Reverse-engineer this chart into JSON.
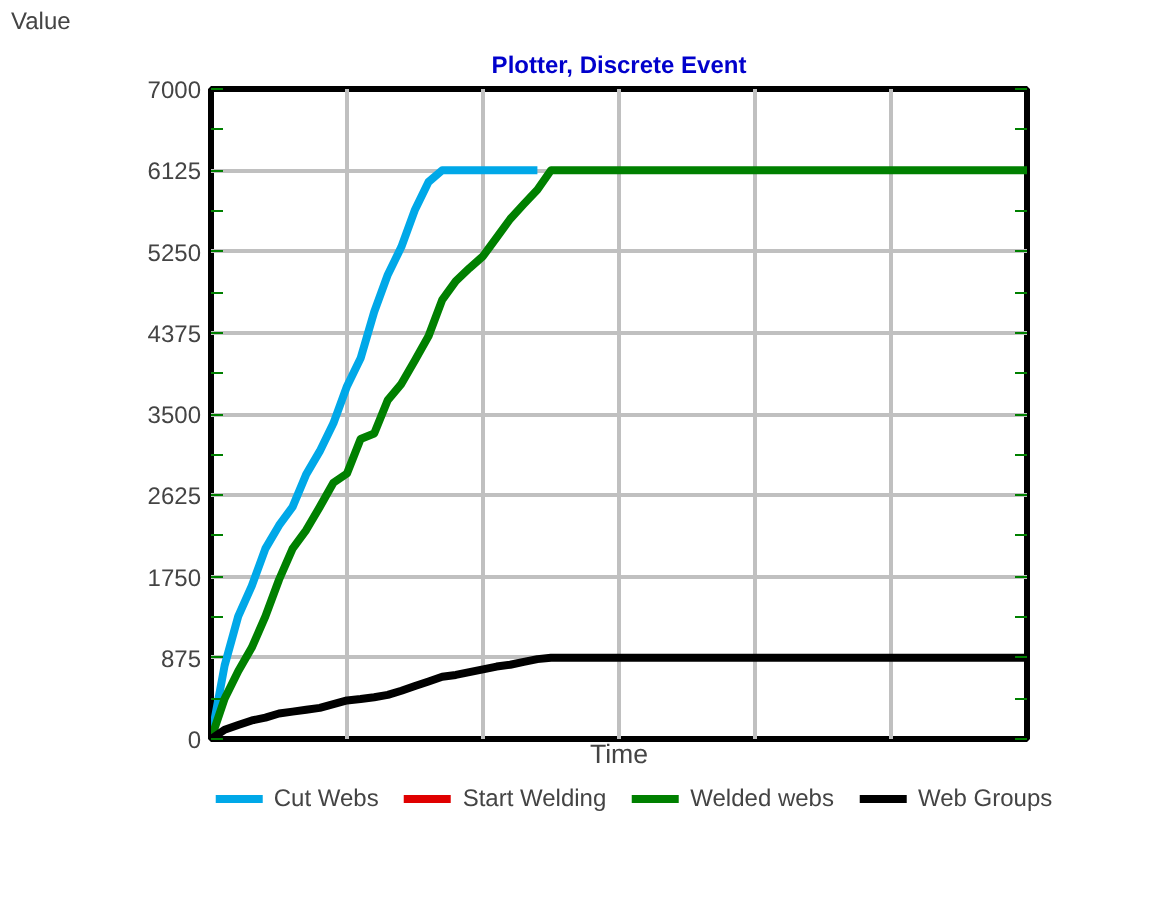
{
  "chart_data": {
    "type": "line",
    "title": "Plotter, Discrete Event",
    "xlabel": "Time",
    "ylabel": "Value",
    "categories": [
      null,
      null,
      null,
      null,
      null,
      null,
      null,
      null,
      null,
      null,
      null,
      null,
      null,
      null,
      null,
      null,
      null,
      null,
      null,
      null,
      null,
      null,
      null,
      null,
      null,
      null,
      null,
      null,
      null,
      null,
      null,
      null,
      null,
      null,
      null,
      null,
      null,
      null,
      null,
      null,
      null,
      null,
      null,
      null,
      null,
      null,
      null,
      null,
      null,
      null,
      null,
      null,
      null,
      null,
      null,
      null,
      null,
      null,
      null,
      null,
      null
    ],
    "series": [
      {
        "name": "Cut Webs",
        "color": "#00a8e8",
        "values": [
          0,
          790,
          1320,
          1650,
          2050,
          2300,
          2500,
          2850,
          3100,
          3400,
          3800,
          4100,
          4600,
          5000,
          5300,
          5700,
          6000,
          6125,
          6125,
          6125,
          6125,
          6125,
          6125,
          6125,
          6125,
          null,
          null,
          null,
          null,
          null,
          null,
          null,
          null,
          null,
          null,
          null,
          null,
          null,
          null,
          null,
          null,
          null,
          null,
          null,
          null,
          null,
          null,
          null,
          null,
          null,
          null,
          null,
          null,
          null,
          null,
          null,
          null,
          null,
          null,
          null,
          null
        ]
      },
      {
        "name": "Start Welding",
        "color": "#e00000",
        "values": [
          null,
          null,
          null,
          null,
          null,
          null,
          null,
          null,
          null,
          null,
          null,
          null,
          null,
          null,
          null,
          null,
          null,
          null,
          null,
          null,
          null,
          null,
          null,
          null,
          null,
          null,
          null,
          null,
          null,
          null,
          null,
          null,
          null,
          null,
          null,
          null,
          null,
          null,
          null,
          null,
          null,
          null,
          null,
          null,
          null,
          null,
          null,
          null,
          null,
          null,
          null,
          null,
          null,
          null,
          null,
          null,
          null,
          null,
          null,
          null,
          null
        ]
      },
      {
        "name": "Welded webs",
        "color": "#008000",
        "values": [
          0,
          434,
          730,
          985,
          1320,
          1715,
          2050,
          2250,
          2500,
          2760,
          2860,
          3230,
          3290,
          3650,
          3825,
          4080,
          4340,
          4730,
          4930,
          5070,
          5200,
          5400,
          5600,
          5760,
          5915,
          6125,
          6125,
          6125,
          6125,
          6125,
          6125,
          6125,
          6125,
          6125,
          6125,
          6125,
          6125,
          6125,
          6125,
          6125,
          6125,
          6125,
          6125,
          6125,
          6125,
          6125,
          6125,
          6125,
          6125,
          6125,
          6125,
          6125,
          6125,
          6125,
          6125,
          6125,
          6125,
          6125,
          6125,
          6125,
          6125
        ]
      },
      {
        "name": "Web Groups",
        "color": "#000000",
        "values": [
          0,
          100,
          150,
          200,
          230,
          275,
          295,
          315,
          335,
          375,
          415,
          430,
          450,
          475,
          520,
          570,
          620,
          670,
          690,
          720,
          750,
          780,
          800,
          830,
          860,
          875,
          875,
          875,
          875,
          875,
          875,
          875,
          875,
          875,
          875,
          875,
          875,
          875,
          875,
          875,
          875,
          875,
          875,
          875,
          875,
          875,
          875,
          875,
          875,
          875,
          875,
          875,
          875,
          875,
          875,
          875,
          875,
          875,
          875,
          875,
          875
        ]
      }
    ],
    "ylim": [
      0,
      7000
    ],
    "yticks": [
      0,
      875,
      1750,
      2625,
      3500,
      4375,
      5250,
      6125,
      7000
    ],
    "grid": true,
    "legend": "bottom",
    "tick_labels": "y",
    "marker": "none",
    "line_style": "solid"
  }
}
